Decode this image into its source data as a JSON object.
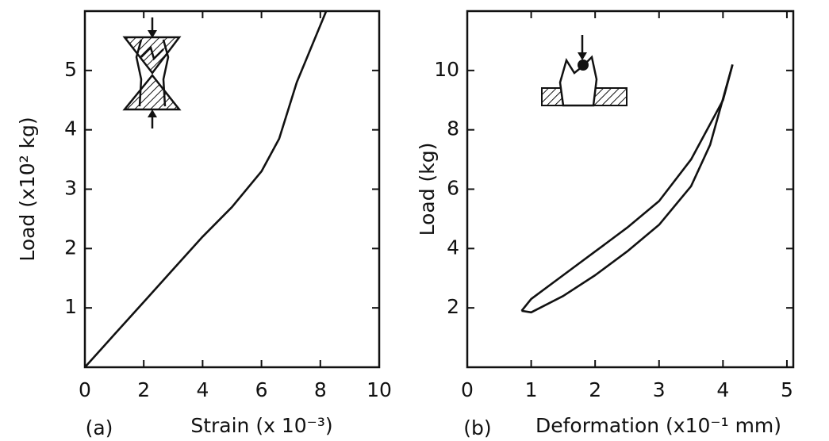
{
  "chart_data": [
    {
      "type": "line",
      "panel_label": "(a)",
      "x_label": "Strain (x 10⁻³)",
      "y_label": "Load (x10² kg)",
      "xlim": [
        0,
        10
      ],
      "ylim": [
        0,
        6
      ],
      "xticks": [
        0,
        2,
        4,
        6,
        8,
        10
      ],
      "yticks": [
        1,
        2,
        3,
        4,
        5
      ],
      "color": "#111111",
      "series": [
        {
          "x": [
            0,
            1,
            2,
            3,
            4,
            5,
            6,
            6.6,
            7.2,
            8.2
          ],
          "values": [
            0,
            0.55,
            1.1,
            1.65,
            2.2,
            2.7,
            3.3,
            3.85,
            4.8,
            6.0
          ]
        }
      ]
    },
    {
      "type": "line",
      "panel_label": "(b)",
      "x_label": "Deformation (x10⁻¹ mm)",
      "y_label": "Load (kg)",
      "xlim": [
        0,
        5.1
      ],
      "ylim": [
        0,
        12
      ],
      "xticks": [
        0,
        1,
        2,
        3,
        4,
        5
      ],
      "yticks": [
        2,
        4,
        6,
        8,
        10
      ],
      "color": "#111111",
      "series": [
        {
          "x": [
            0.85,
            1,
            1.5,
            2,
            2.5,
            3,
            3.5,
            4,
            4.15
          ],
          "values": [
            1.9,
            2.3,
            3.1,
            3.9,
            4.7,
            5.6,
            7.0,
            9.0,
            10.2
          ]
        },
        {
          "x": [
            4.15,
            3.8,
            3.5,
            3,
            2.5,
            2,
            1.5,
            1,
            0.85
          ],
          "values": [
            10.2,
            7.5,
            6.1,
            4.8,
            3.9,
            3.1,
            2.4,
            1.85,
            1.9
          ]
        }
      ]
    }
  ]
}
